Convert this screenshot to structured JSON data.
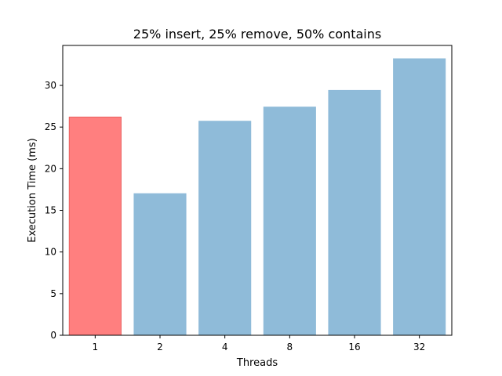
{
  "chart_data": {
    "type": "bar",
    "title": "25% insert, 25% remove, 50% contains",
    "xlabel": "Threads",
    "ylabel": "Execution Time (ms)",
    "categories": [
      "1",
      "2",
      "4",
      "8",
      "16",
      "32"
    ],
    "values": [
      26.2,
      17.0,
      25.7,
      27.4,
      29.4,
      33.2
    ],
    "bar_colors": [
      "#ff7f7f",
      "#8fbbd9",
      "#8fbbd9",
      "#8fbbd9",
      "#8fbbd9",
      "#8fbbd9"
    ],
    "bar_edge_colors": [
      "#e8605f",
      "#8fbbd9",
      "#8fbbd9",
      "#8fbbd9",
      "#8fbbd9",
      "#8fbbd9"
    ],
    "ylim": [
      0,
      34.8
    ],
    "yticks": [
      0,
      5,
      10,
      15,
      20,
      25,
      30
    ],
    "grid": false,
    "legend": "none"
  }
}
